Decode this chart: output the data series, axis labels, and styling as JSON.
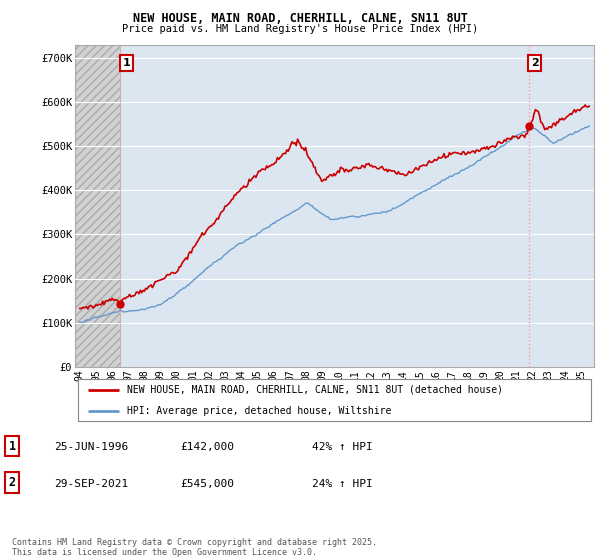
{
  "title1": "NEW HOUSE, MAIN ROAD, CHERHILL, CALNE, SN11 8UT",
  "title2": "Price paid vs. HM Land Registry's House Price Index (HPI)",
  "xlim_start": 1993.7,
  "xlim_end": 2025.8,
  "ylim": [
    0,
    730000
  ],
  "yticks": [
    0,
    100000,
    200000,
    300000,
    400000,
    500000,
    600000,
    700000
  ],
  "ytick_labels": [
    "£0",
    "£100K",
    "£200K",
    "£300K",
    "£400K",
    "£500K",
    "£600K",
    "£700K"
  ],
  "xtick_years": [
    1994,
    1995,
    1996,
    1997,
    1998,
    1999,
    2000,
    2001,
    2002,
    2003,
    2004,
    2005,
    2006,
    2007,
    2008,
    2009,
    2010,
    2011,
    2012,
    2013,
    2014,
    2015,
    2016,
    2017,
    2018,
    2019,
    2020,
    2021,
    2022,
    2023,
    2024,
    2025
  ],
  "sale1_x": 1996.48,
  "sale1_y": 142000,
  "sale2_x": 2021.75,
  "sale2_y": 545000,
  "legend_line1": "NEW HOUSE, MAIN ROAD, CHERHILL, CALNE, SN11 8UT (detached house)",
  "legend_line2": "HPI: Average price, detached house, Wiltshire",
  "annotation1_date": "25-JUN-1996",
  "annotation1_price": "£142,000",
  "annotation1_hpi": "42% ↑ HPI",
  "annotation2_date": "29-SEP-2021",
  "annotation2_price": "£545,000",
  "annotation2_hpi": "24% ↑ HPI",
  "footer": "Contains HM Land Registry data © Crown copyright and database right 2025.\nThis data is licensed under the Open Government Licence v3.0.",
  "house_color": "#cc0000",
  "hpi_color": "#6699cc",
  "plot_bg_color": "#dce6f1",
  "hatch_color": "#b0b0b0",
  "grid_color": "#ffffff",
  "vline_color": "#ff9999"
}
